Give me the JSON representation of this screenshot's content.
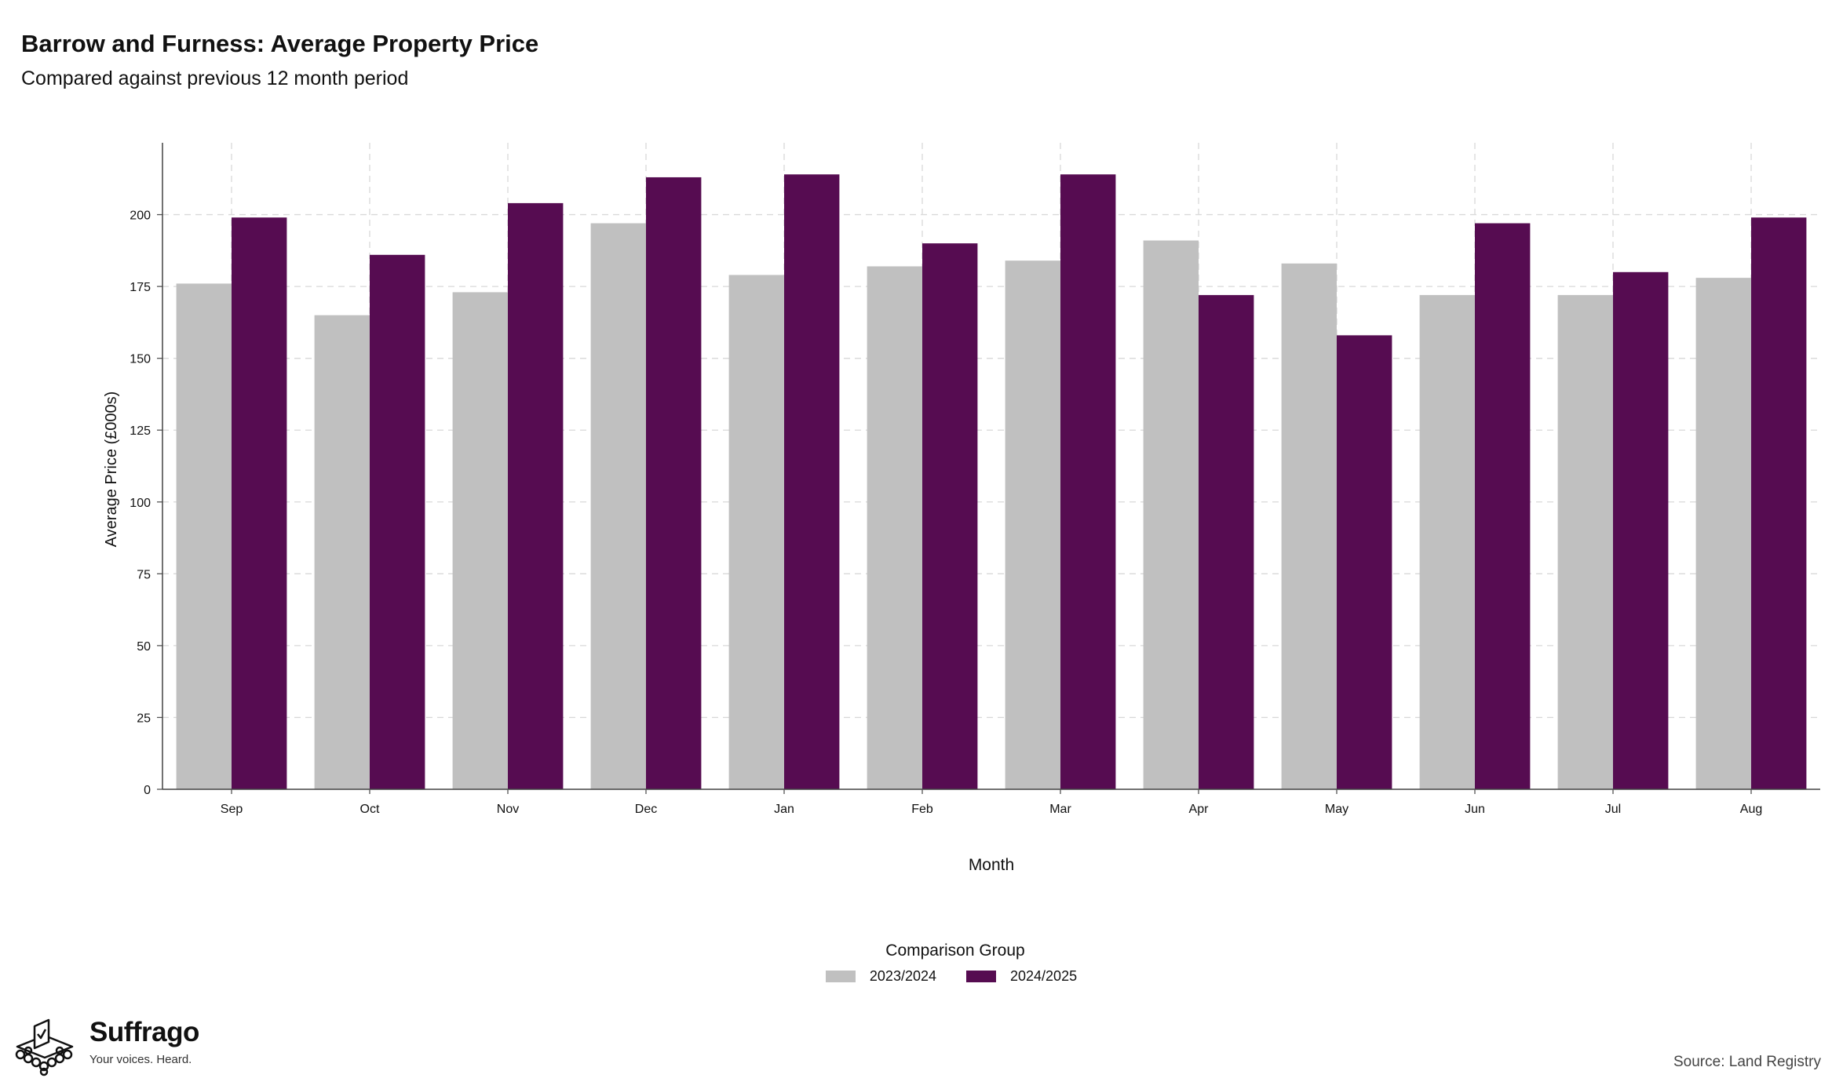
{
  "header": {
    "title": "Barrow and Furness: Average Property Price",
    "subtitle": "Compared against previous 12 month period"
  },
  "chart_data": {
    "type": "bar",
    "title": "Barrow and Furness: Average Property Price",
    "subtitle": "Compared against previous 12 month period",
    "xlabel": "Month",
    "ylabel": "Average Price (£000s)",
    "categories": [
      "Sep",
      "Oct",
      "Nov",
      "Dec",
      "Jan",
      "Feb",
      "Mar",
      "Apr",
      "May",
      "Jun",
      "Jul",
      "Aug"
    ],
    "series": [
      {
        "name": "2023/2024",
        "color": "#c0c0c0",
        "values": [
          176,
          165,
          173,
          197,
          179,
          182,
          184,
          191,
          183,
          172,
          172,
          178
        ]
      },
      {
        "name": "2024/2025",
        "color": "#560c51",
        "values": [
          199,
          186,
          204,
          213,
          214,
          190,
          214,
          172,
          158,
          197,
          180,
          199
        ]
      }
    ],
    "ylim": [
      0,
      225
    ],
    "yticks": [
      0,
      25,
      50,
      75,
      100,
      125,
      150,
      175,
      200
    ],
    "grid": true,
    "legend_title": "Comparison Group",
    "legend_position": "bottom"
  },
  "branding": {
    "logo_icon": "ballot-box-icon",
    "name": "Suffrago",
    "tagline": "Your voices. Heard."
  },
  "footer": {
    "source": "Source: Land Registry"
  }
}
